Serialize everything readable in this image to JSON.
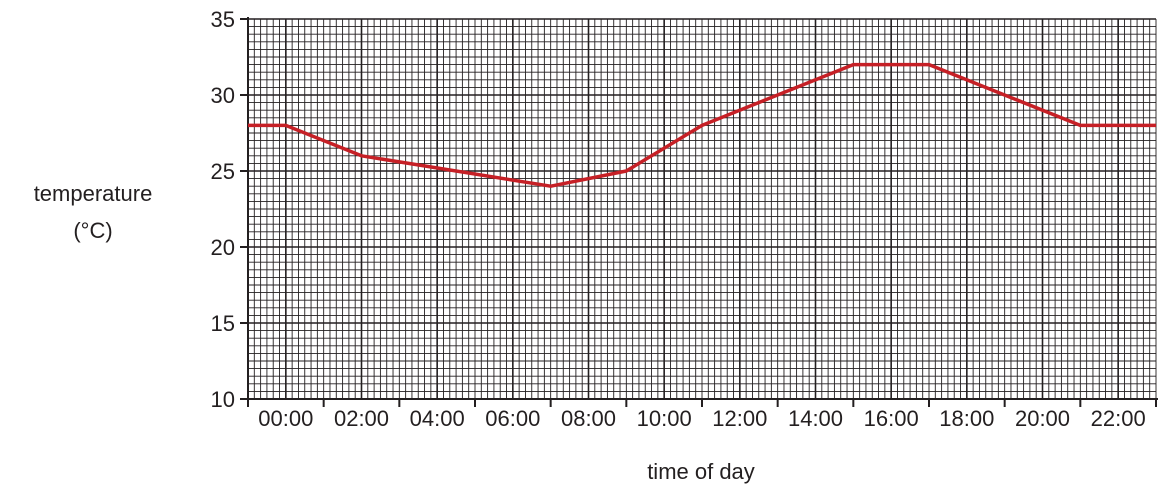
{
  "chart_data": {
    "type": "line",
    "title": "",
    "xlabel": "time of day",
    "ylabel": "temperature",
    "ylabel_unit": "(°C)",
    "x_tick_labels": [
      "00:00",
      "02:00",
      "04:00",
      "06:00",
      "08:00",
      "10:00",
      "12:00",
      "14:00",
      "16:00",
      "18:00",
      "20:00",
      "22:00"
    ],
    "y_tick_labels": [
      "10",
      "15",
      "20",
      "25",
      "30",
      "35"
    ],
    "xlim_hours": [
      -1,
      23
    ],
    "ylim": [
      10,
      35
    ],
    "grid": true,
    "series": [
      {
        "x_hours": [
          -1,
          0,
          2,
          7,
          9,
          11,
          15,
          17,
          21,
          23
        ],
        "y": [
          28,
          28,
          26,
          24,
          25,
          28,
          32,
          32,
          28,
          28
        ]
      }
    ],
    "colors": {
      "line": "#c62026",
      "major_grid": "#231f20",
      "minor_grid": "#231f20",
      "text": "#231f20"
    }
  }
}
